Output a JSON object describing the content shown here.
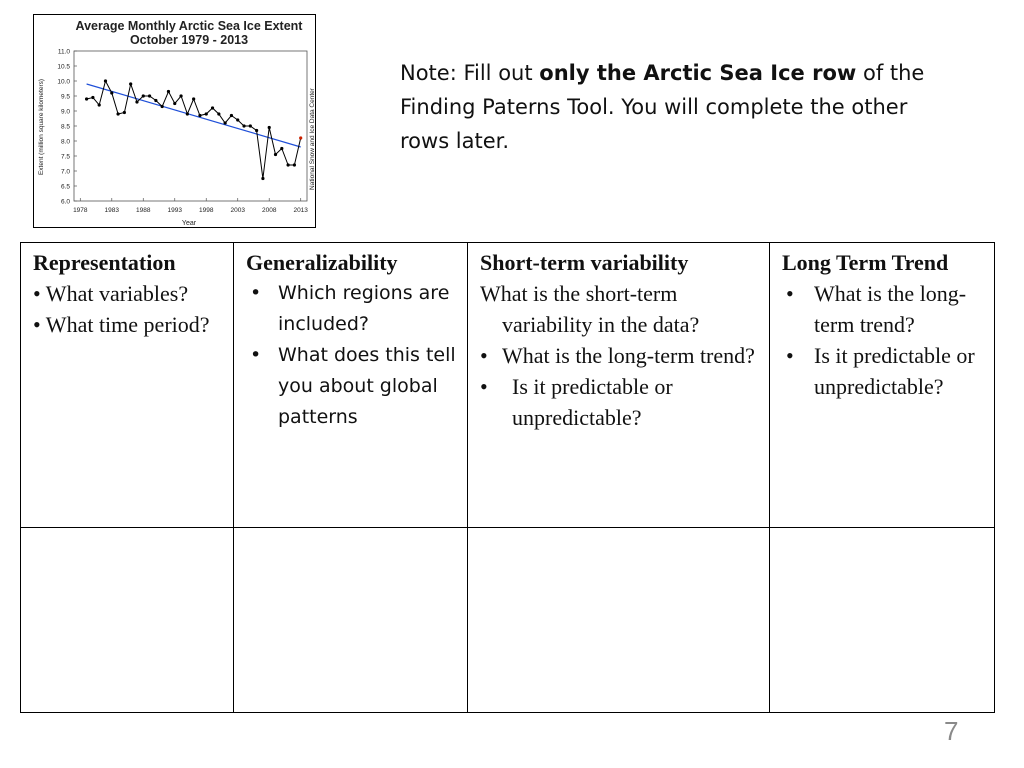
{
  "chart_data": {
    "type": "line",
    "title": "Average Monthly Arctic Sea Ice Extent",
    "subtitle": "October 1979 - 2013",
    "xlabel": "Year",
    "ylabel": "Extent (million square kilometers)",
    "source_label": "National Snow and Ice Data Center",
    "xlim": [
      1977,
      2014
    ],
    "ylim": [
      6.0,
      11.0
    ],
    "x_ticks": [
      "1978",
      "1983",
      "1988",
      "1993",
      "1998",
      "2003",
      "2008",
      "2013"
    ],
    "y_ticks": [
      "6.0",
      "6.5",
      "7.0",
      "7.5",
      "8.0",
      "8.5",
      "9.0",
      "9.5",
      "10.0",
      "10.5",
      "11.0"
    ],
    "grid": false,
    "series": [
      {
        "x": [
          1979,
          1980,
          1981,
          1982,
          1983,
          1984,
          1985,
          1986,
          1987,
          1988,
          1989,
          1990,
          1991,
          1992,
          1993,
          1994,
          1995,
          1996,
          1997,
          1998,
          1999,
          2000,
          2001,
          2002,
          2003,
          2004,
          2005,
          2006,
          2007,
          2008,
          2009,
          2010,
          2011,
          2012,
          2013
        ],
        "values": [
          9.4,
          9.45,
          9.2,
          10.0,
          9.6,
          8.9,
          8.95,
          9.9,
          9.3,
          9.5,
          9.5,
          9.35,
          9.15,
          9.65,
          9.25,
          9.5,
          8.9,
          9.4,
          8.85,
          8.9,
          9.1,
          8.9,
          8.6,
          8.85,
          8.7,
          8.5,
          8.5,
          8.35,
          6.75,
          8.45,
          7.55,
          7.75,
          7.2,
          7.2,
          8.1
        ],
        "color": "#000000",
        "last_point_color": "#cc2200"
      },
      {
        "type": "trend",
        "x": [
          1979,
          2013
        ],
        "values": [
          9.9,
          7.8
        ],
        "color": "#1f4fd8"
      }
    ]
  },
  "note": {
    "prefix": "Note: Fill out ",
    "bold": "only the Arctic Sea Ice row",
    "suffix": " of the Finding Paterns Tool.  You will complete the other rows later."
  },
  "table": {
    "representation": {
      "header": "Representation",
      "b1": "•  What variables?",
      "b2": "•  What time period?"
    },
    "generalizability": {
      "header": "Generalizability",
      "bullet": "•",
      "q1": "Which regions are included?",
      "q2": "What does this tell you about global patterns"
    },
    "short_term": {
      "header": "Short-term variability",
      "line1": "What is the short-term",
      "line2": "variability in the data?",
      "b_long": "•",
      "q_long": "What is the long-term trend?",
      "b_pred": "•",
      "q_pred": "Is it predictable or unpredictable?"
    },
    "long_term": {
      "header": "Long Term Trend",
      "bullet": "•",
      "q1": "What is the long-term trend?",
      "q2": "Is it predictable or unpredictable?"
    }
  },
  "page_number": "7"
}
